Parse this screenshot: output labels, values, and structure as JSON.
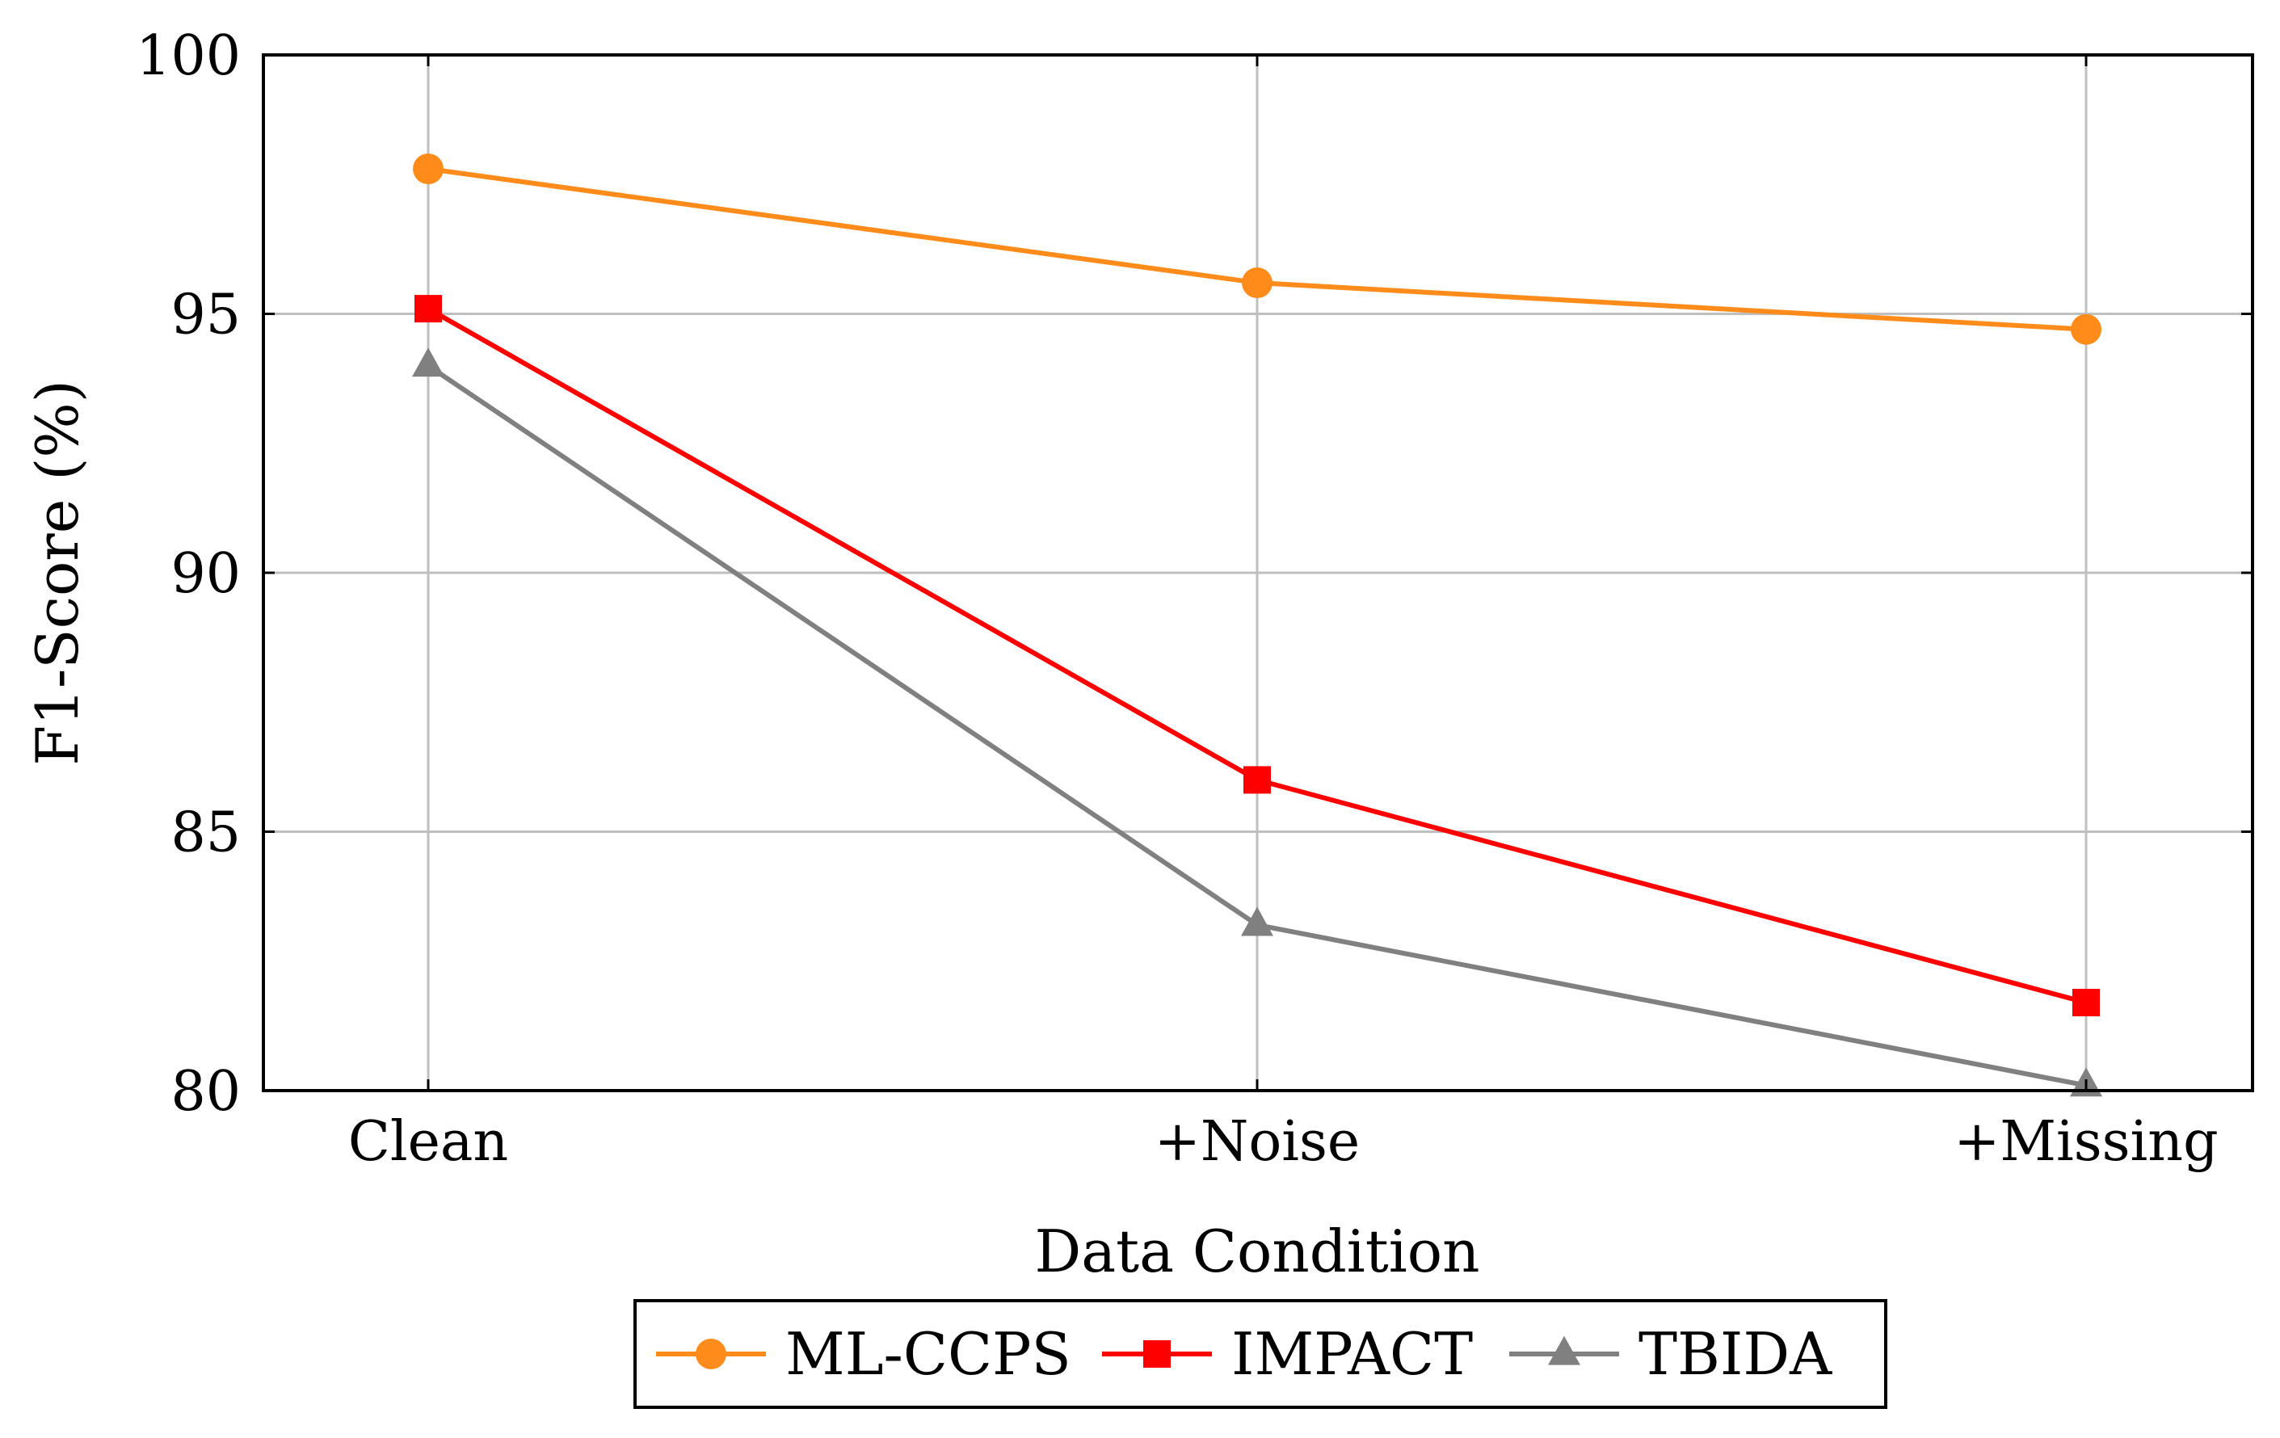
{
  "chart_data": {
    "type": "line",
    "title": "",
    "xlabel": "Data Condition",
    "ylabel": "F1-Score (%)",
    "categories": [
      "Clean",
      "+Noise",
      "+Missing"
    ],
    "ylim": [
      80,
      100
    ],
    "yticks": [
      "80",
      "85",
      "90",
      "95",
      "100"
    ],
    "grid": true,
    "legend_position": "bottom-center",
    "series": [
      {
        "name": "ML-CCPS",
        "values": [
          97.8,
          95.6,
          94.7
        ],
        "color": "#ff8c1a",
        "marker": "circle"
      },
      {
        "name": "IMPACT",
        "values": [
          95.1,
          86.0,
          81.7
        ],
        "color": "#ff0000",
        "marker": "square"
      },
      {
        "name": "TBIDA",
        "values": [
          94.0,
          83.2,
          80.1
        ],
        "color": "#808080",
        "marker": "triangle"
      }
    ]
  }
}
